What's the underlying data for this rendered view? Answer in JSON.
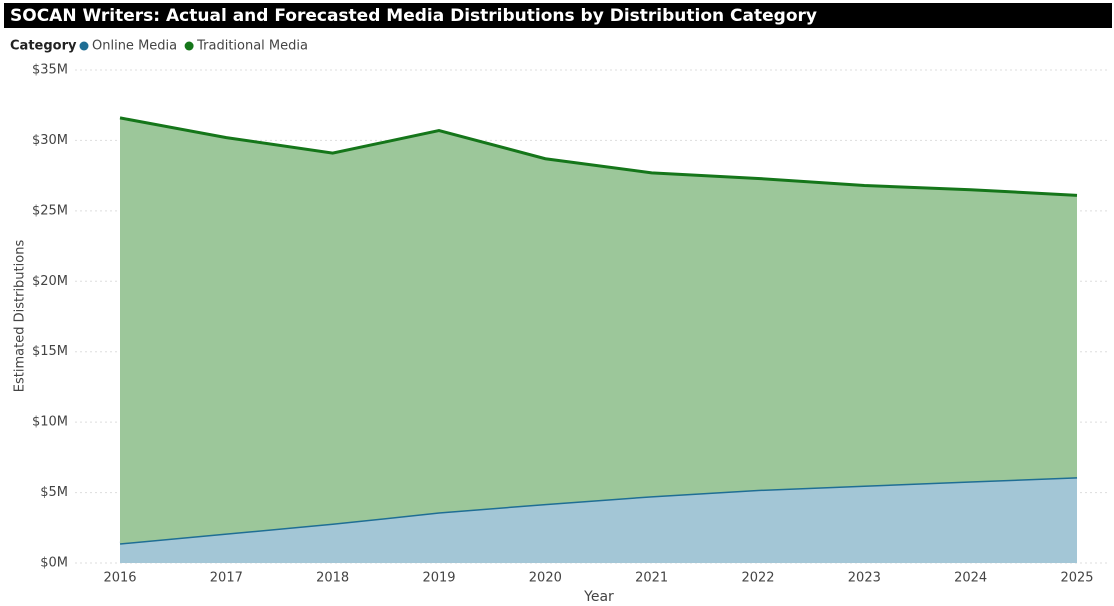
{
  "chart_data": {
    "type": "stacked_area",
    "title": "SOCAN Writers: Actual and Forecasted Media Distributions by Distribution Category",
    "legend_title": "Category",
    "x_label": "Year",
    "y_label": "Estimated Distributions",
    "categories": [
      "2016",
      "2017",
      "2018",
      "2019",
      "2020",
      "2021",
      "2022",
      "2023",
      "2024",
      "2025"
    ],
    "series": [
      {
        "name": "Online Media",
        "color": "#1f6e94",
        "fill": "#a3c6d6",
        "values": [
          1400000,
          2100000,
          2800000,
          3600000,
          4200000,
          4750000,
          5200000,
          5500000,
          5800000,
          6100000
        ]
      },
      {
        "name": "Traditional Media",
        "color": "#15761a",
        "fill": "#9cc79a",
        "values": [
          30200000,
          28100000,
          26300000,
          27100000,
          24500000,
          22950000,
          22100000,
          21300000,
          20700000,
          20000000
        ]
      }
    ],
    "ylim": [
      0,
      35000000
    ],
    "yticks": [
      {
        "value": 0,
        "label": "$0M"
      },
      {
        "value": 5000000,
        "label": "$5M"
      },
      {
        "value": 10000000,
        "label": "$10M"
      },
      {
        "value": 15000000,
        "label": "$15M"
      },
      {
        "value": 20000000,
        "label": "$20M"
      },
      {
        "value": 25000000,
        "label": "$25M"
      },
      {
        "value": 30000000,
        "label": "$30M"
      },
      {
        "value": 35000000,
        "label": "$35M"
      }
    ],
    "grid": true
  }
}
